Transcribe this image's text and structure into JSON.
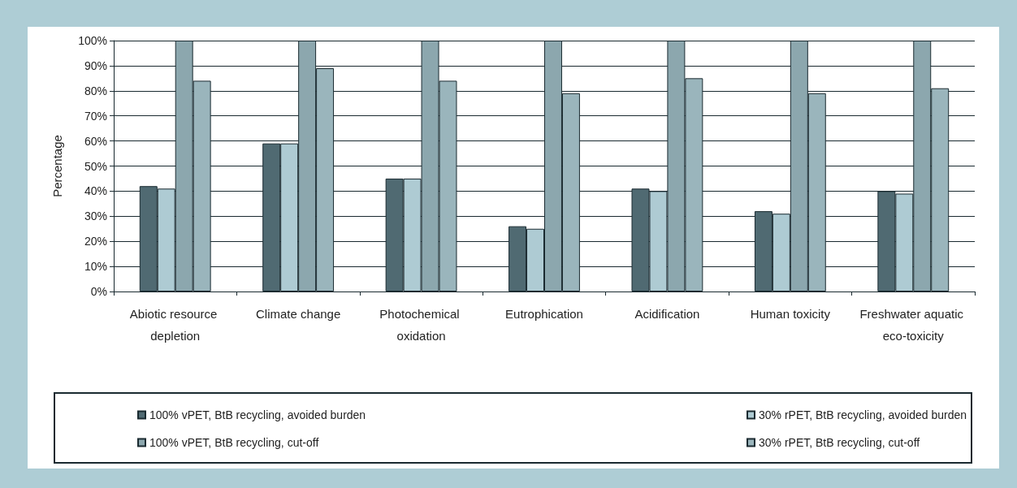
{
  "chart_data": {
    "type": "bar",
    "ylabel": "Percentage",
    "categories": [
      "Abiotic resource depletion",
      "Climate change",
      "Photochemical oxidation",
      "Eutrophication",
      "Acidification",
      "Human toxicity",
      "Freshwater aquatic eco-toxicity"
    ],
    "series": [
      {
        "name": "100% vPET, BtB recycling, avoided burden",
        "color": "#506a72",
        "values": [
          42,
          59,
          45,
          26,
          41,
          32,
          40
        ]
      },
      {
        "name": "30% rPET, BtB recycling, avoided burden",
        "color": "#aecbd3",
        "values": [
          41,
          59,
          45,
          25,
          40,
          31,
          39
        ]
      },
      {
        "name": "100% vPET, BtB recycling, cut-off",
        "color": "#8ca7ae",
        "values": [
          100,
          100,
          100,
          100,
          100,
          100,
          100
        ]
      },
      {
        "name": "30% rPET, BtB recycling, cut-off",
        "color": "#9ab5bc",
        "values": [
          84,
          89,
          84,
          79,
          85,
          79,
          81
        ]
      }
    ],
    "ylim": [
      0,
      100
    ],
    "yticks": [
      {
        "value": 0,
        "label": "0%"
      },
      {
        "value": 10,
        "label": "10%"
      },
      {
        "value": 20,
        "label": "20%"
      },
      {
        "value": 30,
        "label": "30%"
      },
      {
        "value": 40,
        "label": "40%"
      },
      {
        "value": 50,
        "label": "50%"
      },
      {
        "value": 60,
        "label": "60%"
      },
      {
        "value": 70,
        "label": "70%"
      },
      {
        "value": 80,
        "label": "80%"
      },
      {
        "value": 90,
        "label": "90%"
      },
      {
        "value": 100,
        "label": "100%"
      }
    ],
    "grid": "y",
    "legend": "bottom"
  }
}
